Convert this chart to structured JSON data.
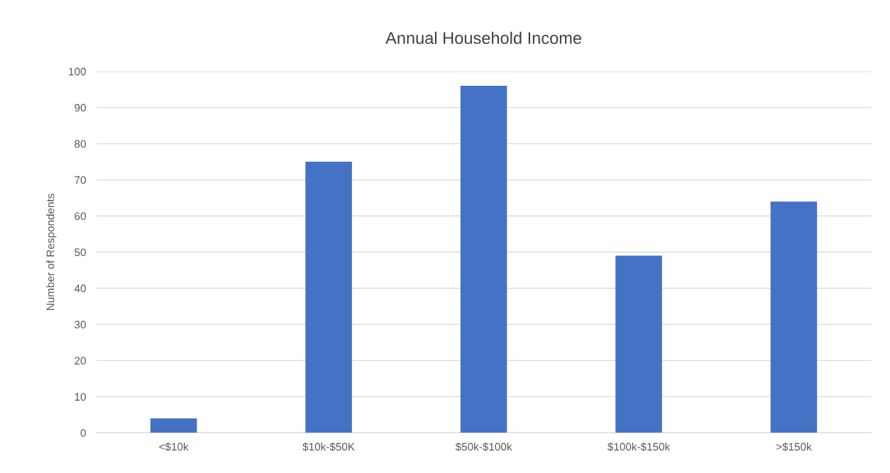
{
  "chart_data": {
    "type": "bar",
    "title": "Annual Household Income",
    "ylabel": "Number of Respondents",
    "categories": [
      "<$10k",
      "$10k-$50K",
      "$50k-$100k",
      "$100k-$150k",
      ">$150k"
    ],
    "values": [
      4,
      75,
      96,
      49,
      64
    ],
    "color": "#4472c4",
    "ylim": [
      0,
      100
    ],
    "yticks": [
      0,
      10,
      20,
      30,
      40,
      50,
      60,
      70,
      80,
      90,
      100
    ],
    "grid": "y",
    "legend": false
  }
}
